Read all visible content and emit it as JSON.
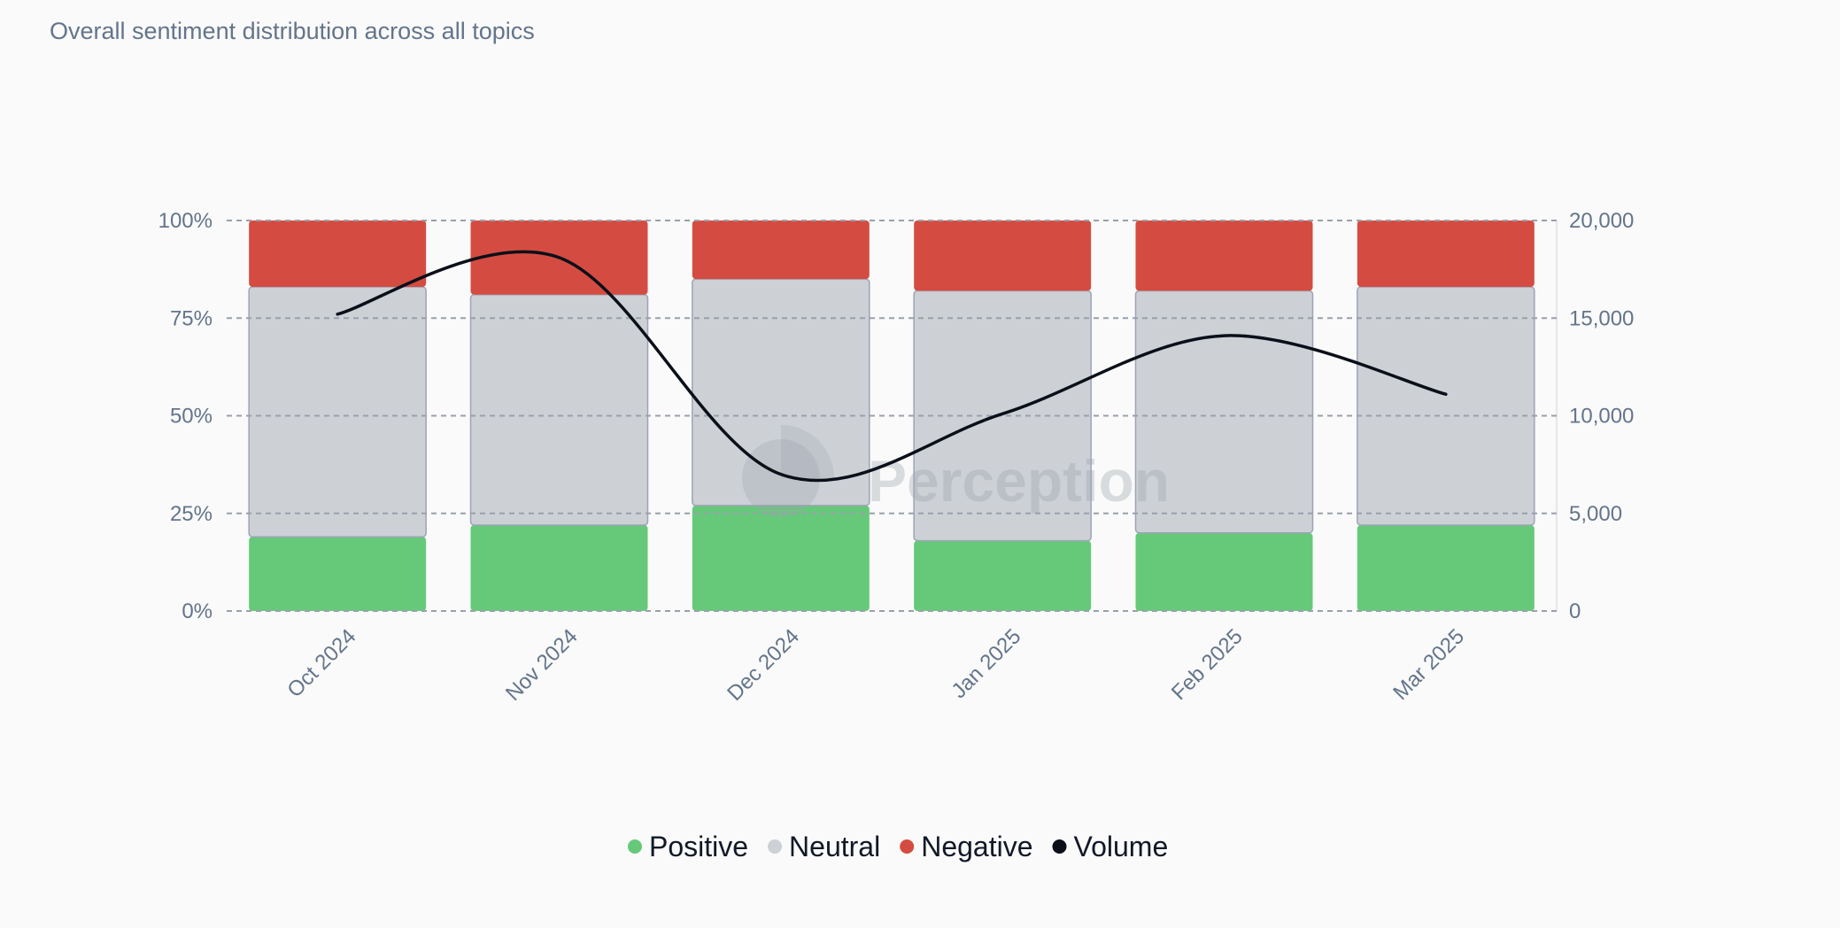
{
  "subtitle": "Overall sentiment distribution across all topics",
  "watermark": "Perception",
  "colors": {
    "positive": "#66c97a",
    "neutral": "#cdd0d5",
    "negative": "#d44c41",
    "volume": "#0b0f19",
    "grid": "#9aa0ab",
    "tick": "#64748b"
  },
  "chart_data": {
    "type": "bar",
    "stacked": true,
    "categories": [
      "Oct 2024",
      "Nov 2024",
      "Dec 2024",
      "Jan 2025",
      "Feb 2025",
      "Mar 2025"
    ],
    "series": [
      {
        "key": "positive",
        "name": "Positive",
        "values": [
          19,
          22,
          27,
          18,
          20,
          22
        ]
      },
      {
        "key": "neutral",
        "name": "Neutral",
        "values": [
          64,
          59,
          58,
          64,
          62,
          61
        ]
      },
      {
        "key": "negative",
        "name": "Negative",
        "values": [
          17,
          19,
          15,
          18,
          18,
          17
        ]
      }
    ],
    "line": {
      "key": "volume",
      "name": "Volume",
      "axis": "right",
      "values": [
        15200,
        18100,
        7000,
        10100,
        14100,
        11100
      ]
    },
    "left_axis": {
      "ylim": [
        0,
        100
      ],
      "ticks": [
        0,
        25,
        50,
        75,
        100
      ],
      "tick_labels": [
        "0%",
        "25%",
        "50%",
        "75%",
        "100%"
      ]
    },
    "right_axis": {
      "ylim": [
        0,
        20000
      ],
      "ticks": [
        0,
        5000,
        10000,
        15000,
        20000
      ],
      "tick_labels": [
        "0",
        "5,000",
        "10,000",
        "15,000",
        "20,000"
      ]
    },
    "grid": true,
    "legend": [
      "Positive",
      "Neutral",
      "Negative",
      "Volume"
    ],
    "legend_position": "bottom-center"
  }
}
